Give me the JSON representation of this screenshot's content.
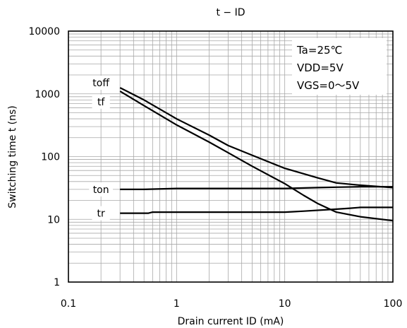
{
  "chart_data": {
    "type": "line",
    "title": "t − ID",
    "xlabel": "Drain current  ID (mA)",
    "ylabel": "Switching time t (ns)",
    "xscale": "log",
    "yscale": "log",
    "xlim": [
      0.1,
      100
    ],
    "ylim": [
      1,
      10000
    ],
    "grid": true,
    "x_ticks": [
      {
        "v": 0.1,
        "label": "0.1"
      },
      {
        "v": 1,
        "label": "1"
      },
      {
        "v": 10,
        "label": "10"
      },
      {
        "v": 100,
        "label": "100"
      }
    ],
    "y_ticks": [
      {
        "v": 1,
        "label": "1"
      },
      {
        "v": 10,
        "label": "10"
      },
      {
        "v": 100,
        "label": "100"
      },
      {
        "v": 1000,
        "label": "1000"
      },
      {
        "v": 10000,
        "label": "10000"
      }
    ],
    "annotations": [
      "Ta=25℃",
      "VDD=5V",
      "VGS=0～5V"
    ],
    "series": [
      {
        "name": "toff",
        "label_at": {
          "x": 0.2,
          "y": 1500
        },
        "x": [
          0.3,
          0.5,
          1,
          2,
          3,
          5,
          10,
          20,
          30,
          50,
          100
        ],
        "y": [
          1250,
          800,
          400,
          220,
          150,
          105,
          65,
          46,
          38,
          35,
          32
        ]
      },
      {
        "name": "tf",
        "label_at": {
          "x": 0.2,
          "y": 750
        },
        "x": [
          0.3,
          0.5,
          1,
          2,
          3,
          5,
          10,
          15,
          20,
          30,
          50,
          100
        ],
        "y": [
          1100,
          650,
          320,
          170,
          115,
          70,
          37,
          24,
          18,
          13,
          11,
          9.5
        ]
      },
      {
        "name": "ton",
        "label_at": {
          "x": 0.2,
          "y": 30
        },
        "x": [
          0.3,
          0.5,
          1,
          2,
          5,
          10,
          20,
          30,
          50,
          100
        ],
        "y": [
          30,
          30,
          31,
          31,
          31,
          31,
          32,
          32.5,
          33,
          33
        ]
      },
      {
        "name": "tr",
        "label_at": {
          "x": 0.2,
          "y": 12.5
        },
        "x": [
          0.3,
          0.55,
          0.6,
          1,
          2,
          5,
          10,
          12,
          15,
          30,
          40,
          50,
          100
        ],
        "y": [
          12.5,
          12.5,
          13,
          13,
          13,
          13,
          13,
          13.2,
          13.5,
          14.5,
          15,
          15.5,
          15.5
        ]
      }
    ]
  }
}
